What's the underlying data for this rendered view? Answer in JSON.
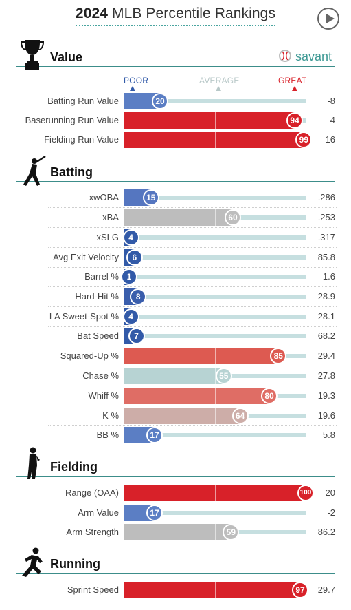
{
  "header": {
    "title_year": "2024",
    "title_rest": "MLB Percentile Rankings",
    "brand": "savant"
  },
  "scale": {
    "poor": "POOR",
    "average": "AVERAGE",
    "great": "GREAT"
  },
  "icons": {
    "value": "trophy-icon",
    "batting": "batter-icon",
    "fielding": "fielder-icon",
    "running": "runner-icon",
    "replay": "play-icon",
    "brand": "baseball-icon"
  },
  "colors": {
    "accent": "#3c8d8a",
    "poor_strong": "#325aa8",
    "great_strong": "#d82129"
  },
  "chart_data": {
    "type": "bar",
    "orientation": "horizontal",
    "xlim": [
      0,
      100
    ],
    "sections": [
      {
        "title": "Value",
        "rows": [
          {
            "metric": "Batting Run Value",
            "percentile": 20,
            "value": "-8",
            "color": "#5b7ec4"
          },
          {
            "metric": "Baserunning Run Value",
            "percentile": 94,
            "value": "4",
            "color": "#d82129"
          },
          {
            "metric": "Fielding Run Value",
            "percentile": 99,
            "value": "16",
            "color": "#d82129"
          }
        ]
      },
      {
        "title": "Batting",
        "rows": [
          {
            "metric": "xwOBA",
            "percentile": 15,
            "value": ".286",
            "color": "#5576c0"
          },
          {
            "metric": "xBA",
            "percentile": 60,
            "value": ".253",
            "color": "#bdbdbd"
          },
          {
            "metric": "xSLG",
            "percentile": 4,
            "value": ".317",
            "color": "#325aa8"
          },
          {
            "metric": "Avg Exit Velocity",
            "percentile": 6,
            "value": "85.8",
            "color": "#325aa8"
          },
          {
            "metric": "Barrel %",
            "percentile": 1,
            "value": "1.6",
            "color": "#325aa8"
          },
          {
            "metric": "Hard-Hit %",
            "percentile": 8,
            "value": "28.9",
            "color": "#3a5eac"
          },
          {
            "metric": "LA Sweet-Spot %",
            "percentile": 4,
            "value": "28.1",
            "color": "#325aa8"
          },
          {
            "metric": "Bat Speed",
            "percentile": 7,
            "value": "68.2",
            "color": "#325aa8"
          },
          {
            "metric": "Squared-Up %",
            "percentile": 85,
            "value": "29.4",
            "color": "#dd5a51"
          },
          {
            "metric": "Chase %",
            "percentile": 55,
            "value": "27.8",
            "color": "#b7d3d3"
          },
          {
            "metric": "Whiff %",
            "percentile": 80,
            "value": "19.3",
            "color": "#df6d65"
          },
          {
            "metric": "K %",
            "percentile": 64,
            "value": "19.6",
            "color": "#cdada8"
          },
          {
            "metric": "BB %",
            "percentile": 17,
            "value": "5.8",
            "color": "#5b7ec4"
          }
        ]
      },
      {
        "title": "Fielding",
        "rows": [
          {
            "metric": "Range (OAA)",
            "percentile": 100,
            "value": "20",
            "color": "#d82129"
          },
          {
            "metric": "Arm Value",
            "percentile": 17,
            "value": "-2",
            "color": "#5b7ec4"
          },
          {
            "metric": "Arm Strength",
            "percentile": 59,
            "value": "86.2",
            "color": "#bdbdbd"
          }
        ]
      },
      {
        "title": "Running",
        "rows": [
          {
            "metric": "Sprint Speed",
            "percentile": 97,
            "value": "29.7",
            "color": "#d82129"
          }
        ]
      }
    ]
  }
}
